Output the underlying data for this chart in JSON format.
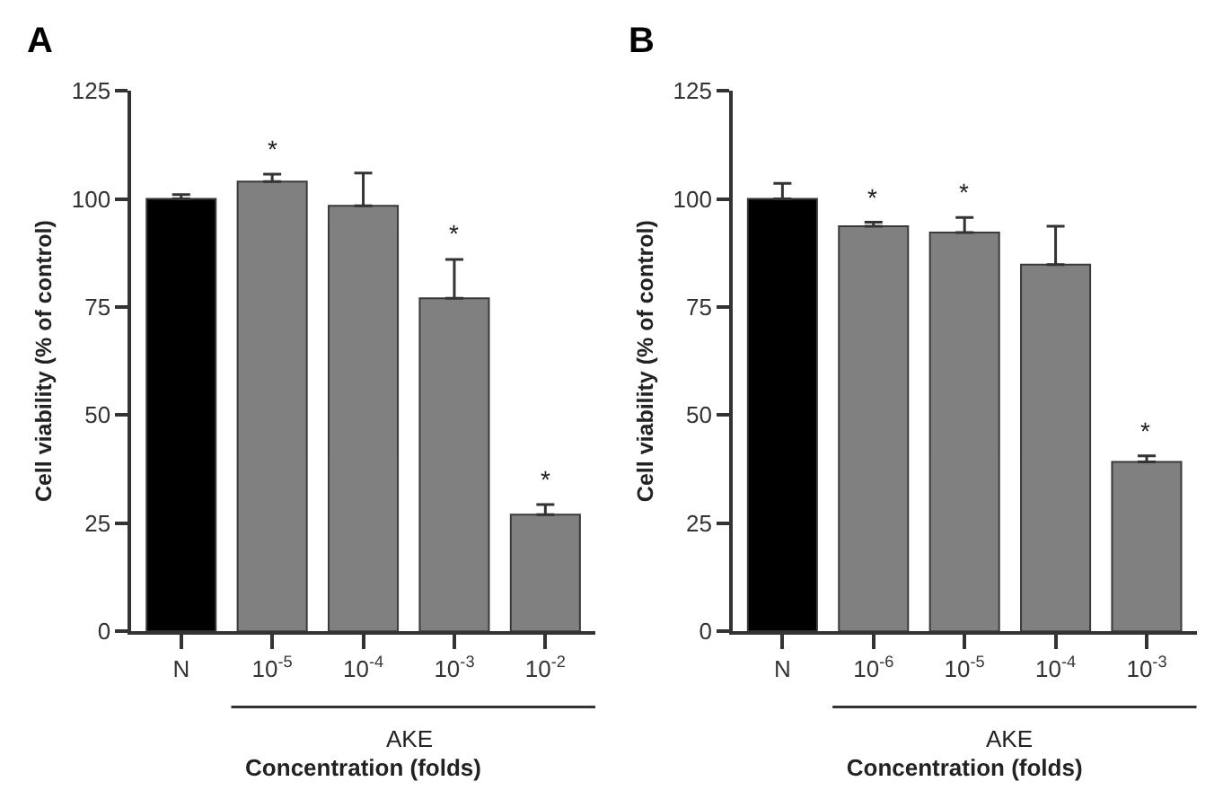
{
  "chart_data": [
    {
      "type": "bar",
      "title": "A",
      "xlabel": "Concentration (folds)",
      "ylabel": "Cell viability (% of control)",
      "categories": [
        "N",
        "10$^{-5}$",
        "10$^{-4}$",
        "10$^{-3}$",
        "10$^{-2}$"
      ],
      "values": [
        100,
        104,
        98.4,
        77,
        27
      ],
      "colors": [
        "#000000",
        "#808080",
        "#808080",
        "#808080",
        "#808080"
      ],
      "errors": [
        [
          100,
          101
        ],
        [
          104,
          105.7
        ],
        [
          98.4,
          106
        ],
        [
          77,
          86
        ],
        [
          27,
          29.3
        ]
      ],
      "ylim": [
        0,
        125
      ],
      "yticks": [
        0,
        25,
        50,
        75,
        100,
        125
      ],
      "value_labels": [
        null,
        "*",
        null,
        "*",
        "*"
      ],
      "annotations": [
        "AKE"
      ]
    },
    {
      "type": "bar",
      "title": "B",
      "xlabel": "Concentration (folds)",
      "ylabel": "Cell viability (% of control)",
      "categories": [
        "N",
        "10$^{-6}$",
        "10$^{-5}$",
        "10$^{-4}$",
        "10$^{-3}$"
      ],
      "values": [
        100,
        93.7,
        92.2,
        84.8,
        39.2
      ],
      "colors": [
        "#000000",
        "#808080",
        "#808080",
        "#808080",
        "#808080"
      ],
      "errors": [
        [
          100,
          103.6
        ],
        [
          93.7,
          94.6
        ],
        [
          92.2,
          95.7
        ],
        [
          84.8,
          93.7
        ],
        [
          39.2,
          40.6
        ]
      ],
      "ylim": [
        0,
        125
      ],
      "yticks": [
        0,
        25,
        50,
        75,
        100,
        125
      ],
      "value_labels": [
        null,
        "*",
        "*",
        null,
        "*"
      ],
      "annotations": [
        "AKE"
      ]
    }
  ]
}
